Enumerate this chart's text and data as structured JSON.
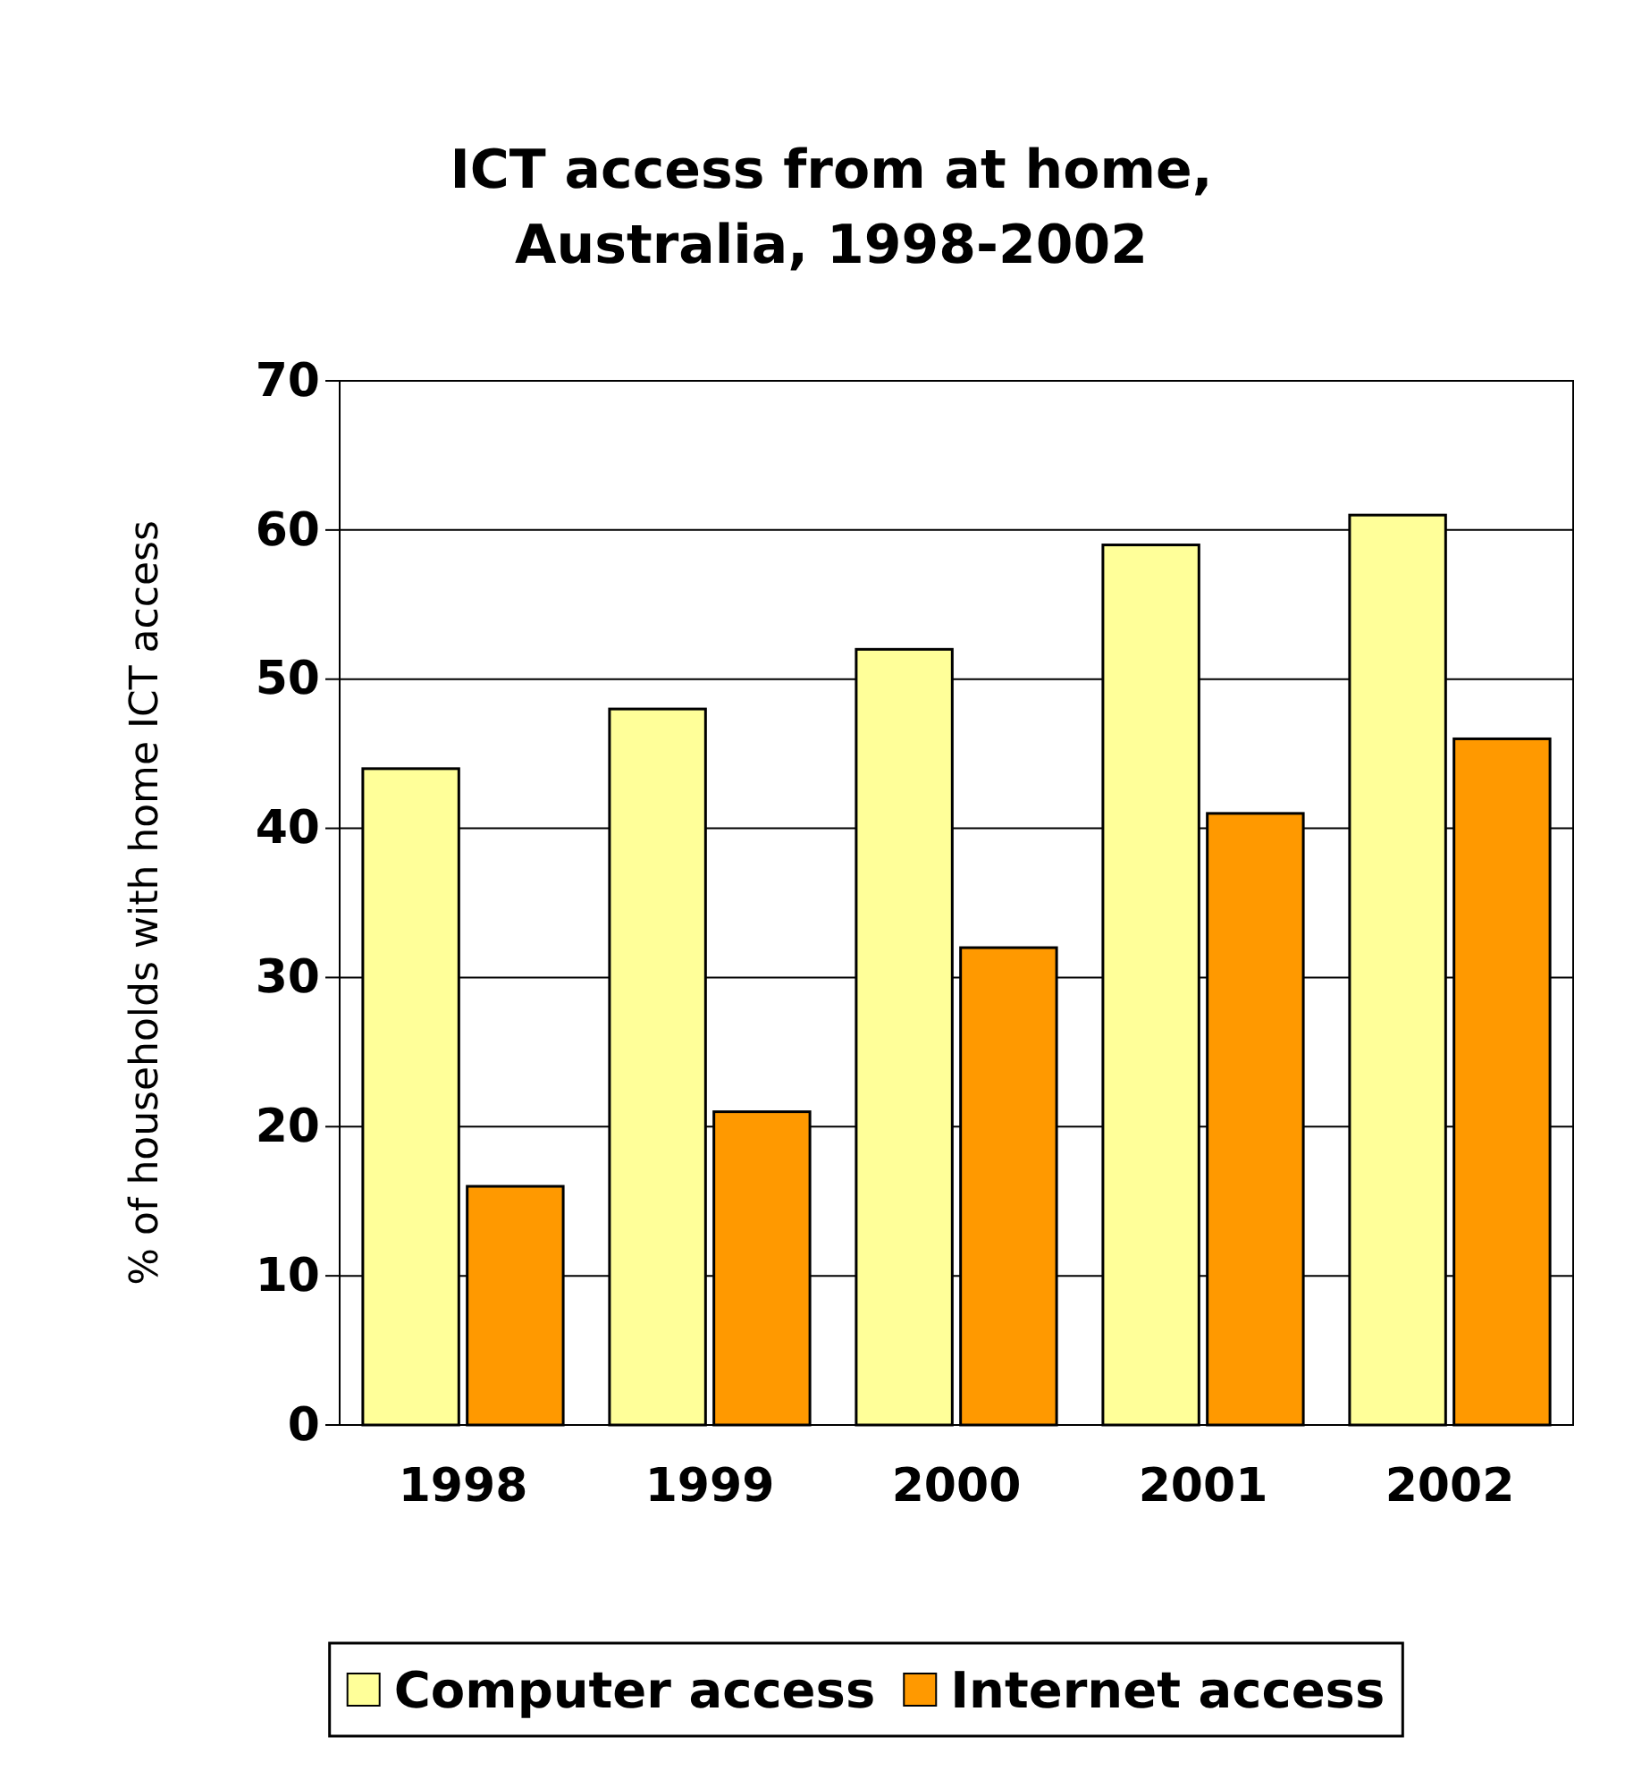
{
  "chart_data": {
    "type": "bar",
    "title": "ICT access from at home, Australia, 1998-2002",
    "ylabel": "% of households with home ICT access",
    "categories": [
      "1998",
      "1999",
      "2000",
      "2001",
      "2002"
    ],
    "series": [
      {
        "name": "Computer access",
        "color": "#ffff99",
        "values": [
          44,
          48,
          52,
          59,
          61
        ]
      },
      {
        "name": "Internet access",
        "color": "#ff9900",
        "values": [
          16,
          21,
          32,
          41,
          46
        ]
      }
    ],
    "ylim": [
      0,
      70
    ],
    "yticks": [
      0,
      10,
      20,
      30,
      40,
      50,
      60,
      70
    ],
    "grid": "y",
    "legend": "bottom"
  }
}
